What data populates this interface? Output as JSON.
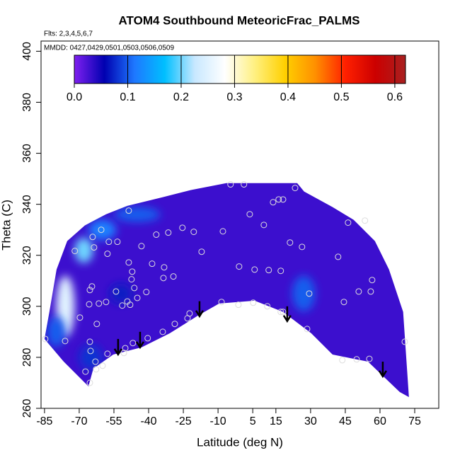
{
  "chart_data": {
    "type": "contour",
    "title": "ATOM4 Southbound MeteoricFrac_PALMS",
    "subtitle": "Flts: 2,3,4,5,6,7",
    "annotation": "MMDD: 0427,0429,0501,0503,0506,0509",
    "x_label": "Latitude (deg N)",
    "y_label": "Theta (C)",
    "xlim": [
      -86.5,
      85.4
    ],
    "ylim": [
      260,
      404
    ],
    "xticks": [
      -85,
      -70,
      -55,
      -40,
      -25,
      -10,
      5,
      15,
      30,
      45,
      60,
      75
    ],
    "yticks": [
      260,
      280,
      300,
      320,
      340,
      360,
      380,
      400
    ],
    "colorbar": {
      "lim": [
        0,
        0.62
      ],
      "ticks": [
        {
          "value": 0,
          "label": "0.0"
        },
        0.1,
        0.2,
        0.3,
        0.4,
        0.5,
        0.6
      ],
      "colors": [
        "#8020f0",
        "#0000b0",
        "#1e78ff",
        "#00bfff",
        "#c8e8ff",
        "#ffffff",
        "#fff080",
        "#ffd000",
        "#ff9000",
        "#ff2000",
        "#cc0000",
        "#a82020"
      ]
    },
    "background_value": 0.03,
    "domain": {
      "lat": [
        -85,
        -82.9,
        -79.8,
        -75.2,
        -67.6,
        -58.4,
        -49.2,
        -33.9,
        -21.7,
        -6.4,
        24.2,
        27.2,
        39.5,
        48.6,
        57.8,
        63.9,
        70,
        72.5,
        68.5,
        54.8,
        39.5,
        30.3,
        18.1,
        5.8,
        -9.5,
        -18.6,
        -30.9,
        -43.1,
        -55.3,
        -63.9,
        -66,
        -76.7
      ],
      "theta": [
        287.2,
        297.8,
        314.4,
        325.6,
        331.7,
        336.1,
        339.4,
        342.8,
        345.6,
        348.3,
        348.3,
        345,
        338.9,
        333.9,
        325.6,
        314.4,
        297.8,
        264.4,
        266.4,
        278.3,
        281.1,
        289.4,
        297.8,
        302.2,
        301.1,
        296.4,
        289.4,
        283.9,
        281.1,
        275.6,
        268.6,
        278.3
      ]
    },
    "patches": {
      "lat": [
        -76,
        -68,
        -80,
        -60,
        -45,
        27,
        -52,
        -65
      ],
      "theta": [
        300,
        322,
        290,
        330,
        336,
        305,
        305,
        280
      ],
      "rlat": [
        4,
        4,
        4,
        6,
        10,
        5,
        5,
        5
      ],
      "rtheta": [
        12,
        5,
        6,
        4,
        3,
        7,
        4,
        5
      ],
      "values": [
        0.25,
        0.2,
        0.1,
        0.12,
        0.1,
        0.1,
        0.07,
        0.08
      ]
    },
    "points": {
      "lat": [
        -60.5,
        -64.2,
        -63.6,
        -57.2,
        -53.5,
        -48.6,
        -71.9,
        -65.4,
        -64.5,
        -69.7,
        -57.8,
        -47.1,
        -47.4,
        -46.2,
        -44.9,
        -41,
        -49.2,
        -51.4,
        -48,
        -54.1,
        -58.4,
        -61.5,
        -65.7,
        -62.4,
        -65.4,
        -65.1,
        -63,
        -59.9,
        -62.7,
        -67.3,
        -57.8,
        -50.1,
        -50.7,
        -46.8,
        -40.4,
        -33.9,
        -28.7,
        -23.2,
        -22.3,
        -8.5,
        -1.2,
        5.2,
        11.3,
        18.1,
        28.5,
        -48.6,
        -38.5,
        -43.1,
        -36.7,
        -31.5,
        -25.4,
        -20.5,
        -17.1,
        -7.9,
        -4.6,
        1.2,
        3.7,
        9.8,
        13.8,
        16.2,
        18.1,
        23.3,
        21.1,
        26.3,
        17.1,
        11.9,
        5.8,
        -0.9,
        -33.6,
        -29.3,
        -33.3,
        29.4,
        46.2,
        41.9,
        50.8,
        56,
        56.6,
        53.5,
        44.4,
        43.7,
        49.9,
        55.4,
        70.7,
        -76.1,
        -65.4,
        -84.7,
        17.1
      ],
      "theta": [
        330,
        327.2,
        323.1,
        325.3,
        325.3,
        337.5,
        321.7,
        306.4,
        307.8,
        295.6,
        320.6,
        313.6,
        310.6,
        307.2,
        303.3,
        305.6,
        301.9,
        300.3,
        300.6,
        305.8,
        301.7,
        301.1,
        300.8,
        293.1,
        286.1,
        282.5,
        278.3,
        276.7,
        275.3,
        274.4,
        281.4,
        283.6,
        281.7,
        285.6,
        287.5,
        290,
        293.1,
        295.3,
        297.2,
        301.7,
        300.6,
        301.4,
        300,
        297.8,
        291.1,
        317.2,
        316.7,
        323.6,
        328.1,
        328.9,
        330.8,
        329.2,
        321.4,
        329.4,
        347.8,
        347.8,
        336.1,
        331.9,
        340.8,
        341.9,
        341.9,
        346.4,
        325,
        323.3,
        313.9,
        314.2,
        314.4,
        315.6,
        311.1,
        311.7,
        315.3,
        305,
        332.8,
        319.4,
        305.8,
        305.8,
        310.3,
        333.6,
        301.7,
        278.9,
        279.2,
        279.4,
        286.1,
        286.4,
        270,
        287.2,
        297.8
      ]
    },
    "arrows": {
      "lat": [
        -53.2,
        -43.7,
        -18,
        19.9,
        61.2
      ],
      "theta_from": [
        287.2,
        290,
        302,
        300,
        278.3
      ],
      "theta_to": [
        281.1,
        283.9,
        296.1,
        294.2,
        272.5
      ]
    }
  }
}
